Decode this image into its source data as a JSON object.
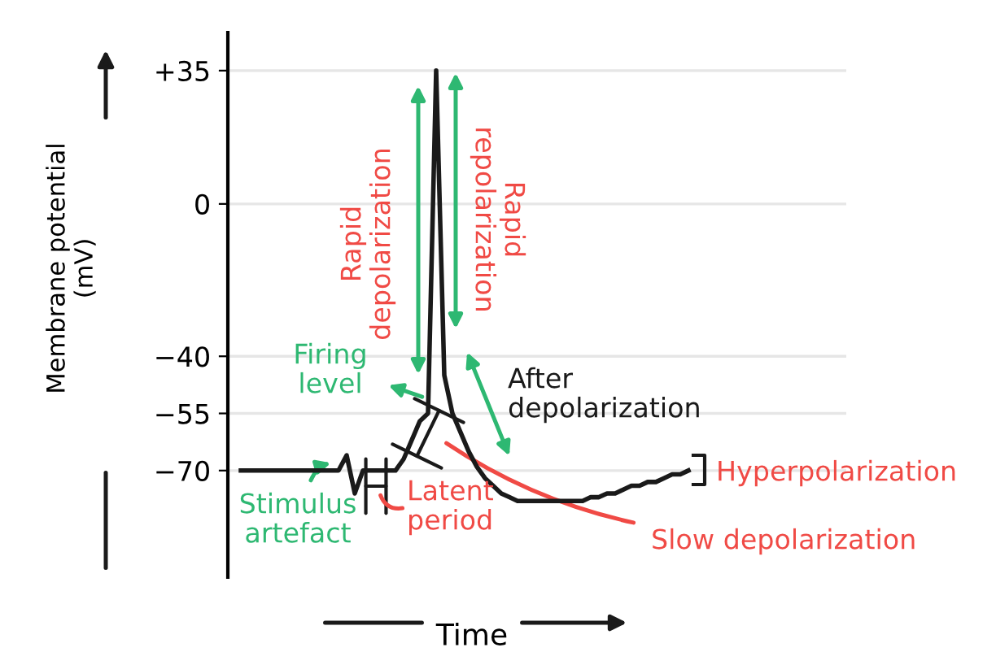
{
  "chart_data": {
    "type": "line",
    "xlabel": "Time",
    "ylabel": "Membrane potential\n(mV)",
    "categories": [
      null,
      null,
      null,
      null,
      null,
      null,
      null,
      null,
      null,
      null,
      null,
      null,
      null,
      null,
      null,
      null,
      null,
      null,
      null,
      null,
      null,
      null,
      null,
      null,
      null,
      null,
      null,
      null,
      null,
      null,
      null,
      null,
      null,
      null,
      null,
      null,
      null,
      null,
      null,
      null,
      null,
      null,
      null,
      null,
      null,
      null,
      null,
      null,
      null,
      null,
      null,
      null,
      null,
      null,
      null,
      null
    ],
    "series": [
      {
        "color": "#1a1a1a",
        "values": [
          -70,
          -70,
          -70,
          -70,
          -70,
          -70,
          -70,
          -70,
          -70,
          -70,
          -70,
          -70,
          -70,
          -66,
          -76,
          -70,
          -70,
          -70,
          -70,
          -70,
          -67,
          -62,
          -57,
          -55,
          35,
          -45,
          -55,
          -60,
          -65,
          -69,
          -72,
          -74,
          -76,
          -77,
          -78,
          -78,
          -78,
          -78,
          -78,
          -78,
          -78,
          -78,
          -78,
          -77,
          -77,
          -76,
          -76,
          -75,
          -74,
          -74,
          -73,
          -73,
          -72,
          -71,
          -71,
          -70
        ]
      }
    ],
    "ylim": [
      -98,
      45
    ],
    "yticks": [
      {
        "value": 35,
        "label": "+35"
      },
      0,
      {
        "value": -40,
        "label": "−40"
      },
      {
        "value": -55,
        "label": "−55"
      },
      {
        "value": -70,
        "label": "−70"
      }
    ],
    "grid": "y",
    "tick_labels": "y",
    "legend": false,
    "marker": "none",
    "line_style": "solid",
    "annotations": [
      "Rapid\ndepolarization",
      "Rapid\nrepolarization",
      "Firing\nlevel",
      "After\ndepolarization",
      "Stimulus\nartefact",
      "Latent\nperiod",
      "Hyperpolarization",
      "Slow depolarization"
    ]
  }
}
